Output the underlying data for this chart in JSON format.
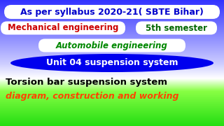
{
  "line1_text": "As per syllabus 2020-21( SBTE Bihar)",
  "line1_text_color": "#0000cc",
  "line1_bg": "#ffffff",
  "line2a_text": "Mechanical engineering",
  "line2a_text_color": "#cc0000",
  "line2a_bg": "#ffffff",
  "line2b_text": "5th semester",
  "line2b_text_color": "#006600",
  "line2b_bg": "#ffffff",
  "line3_text": "Automobile engineering",
  "line3_text_color": "#008800",
  "line3_bg": "#ffffff",
  "line4_text": "Unit 04 suspension system",
  "line4_text_color": "#ffffff",
  "line4_bg": "#0000ee",
  "line5_text": "Torsion bar suspension system",
  "line5_text_color": "#000000",
  "line6_text": "diagram, construction and working",
  "line6_text_color": "#ff4400"
}
